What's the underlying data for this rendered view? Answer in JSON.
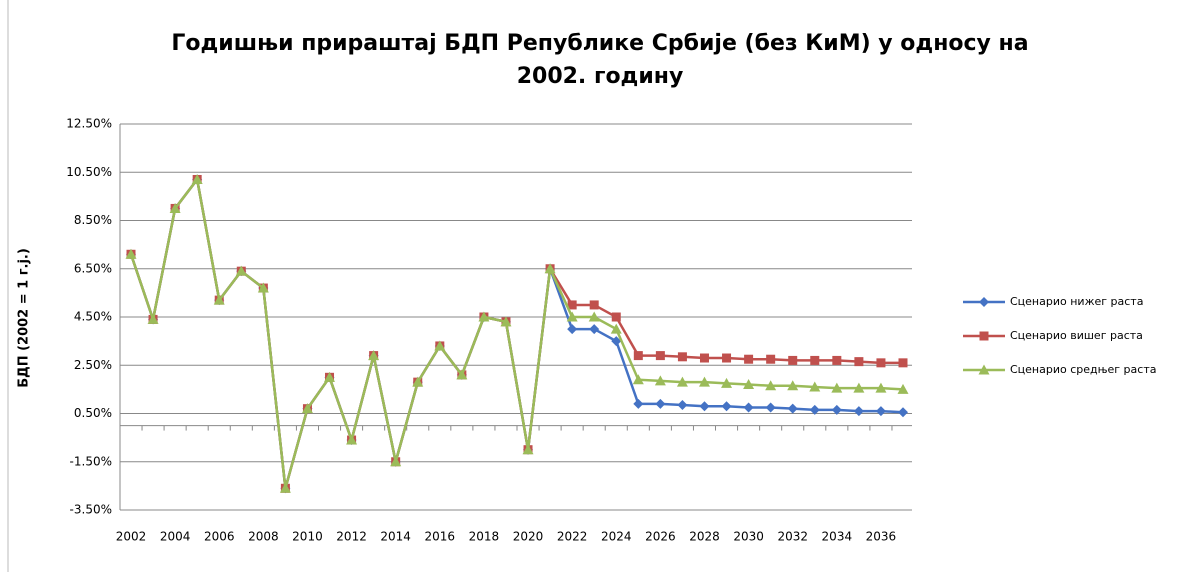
{
  "chart_data": {
    "type": "line",
    "title": [
      "Годишњи прираштај БДП Републике Србије (без КиМ) у односу на",
      "2002. годину"
    ],
    "ylabel": "БДП (2002 = 1 г.ј.)",
    "categories": [
      "2002",
      null,
      "2004",
      null,
      "2006",
      null,
      "2008",
      null,
      "2010",
      null,
      "2012",
      null,
      "2014",
      null,
      "2016",
      null,
      "2018",
      null,
      "2020",
      null,
      "2022",
      null,
      "2024",
      null,
      "2026",
      null,
      "2028",
      null,
      "2030",
      null,
      "2032",
      null,
      "2034",
      null,
      "2036",
      null
    ],
    "ylim": [
      -3.5,
      12.5
    ],
    "yticks": [
      {
        "value": -3.5,
        "label": "-3.50%"
      },
      {
        "value": -1.5,
        "label": "-1.50%"
      },
      {
        "value": 0.5,
        "label": "0.50%"
      },
      {
        "value": 2.5,
        "label": "2.50%"
      },
      {
        "value": 4.5,
        "label": "4.50%"
      },
      {
        "value": 6.5,
        "label": "6.50%"
      },
      {
        "value": 8.5,
        "label": "8.50%"
      },
      {
        "value": 10.5,
        "label": "10.50%"
      },
      {
        "value": 12.5,
        "label": "12.50%"
      }
    ],
    "grid": true,
    "legend": "right",
    "series": [
      {
        "name": "Сценарио нижег раста",
        "color": "#4472c4",
        "marker": "diamond",
        "values": [
          7.1,
          4.4,
          9.0,
          10.2,
          5.2,
          6.4,
          5.7,
          -2.6,
          0.7,
          2.0,
          -0.6,
          2.9,
          -1.5,
          1.8,
          3.3,
          2.1,
          4.5,
          4.3,
          -1.0,
          6.5,
          4.0,
          4.0,
          3.5,
          0.9,
          0.9,
          0.85,
          0.8,
          0.8,
          0.75,
          0.75,
          0.7,
          0.65,
          0.65,
          0.6,
          0.6,
          0.55
        ]
      },
      {
        "name": "Сценарио вишег раста",
        "color": "#c0504d",
        "marker": "square",
        "values": [
          7.1,
          4.4,
          9.0,
          10.2,
          5.2,
          6.4,
          5.7,
          -2.6,
          0.7,
          2.0,
          -0.6,
          2.9,
          -1.5,
          1.8,
          3.3,
          2.1,
          4.5,
          4.3,
          -1.0,
          6.5,
          5.0,
          5.0,
          4.5,
          2.9,
          2.9,
          2.85,
          2.8,
          2.8,
          2.75,
          2.75,
          2.7,
          2.7,
          2.7,
          2.65,
          2.6,
          2.6
        ]
      },
      {
        "name": "Сценарио средњег раста",
        "color": "#9bbb59",
        "marker": "triangle",
        "values": [
          7.1,
          4.4,
          9.0,
          10.2,
          5.2,
          6.4,
          5.7,
          -2.6,
          0.7,
          2.0,
          -0.6,
          2.9,
          -1.5,
          1.8,
          3.3,
          2.1,
          4.5,
          4.3,
          -1.0,
          6.5,
          4.5,
          4.5,
          4.0,
          1.9,
          1.85,
          1.8,
          1.8,
          1.75,
          1.7,
          1.65,
          1.65,
          1.6,
          1.55,
          1.55,
          1.55,
          1.5
        ]
      }
    ]
  }
}
